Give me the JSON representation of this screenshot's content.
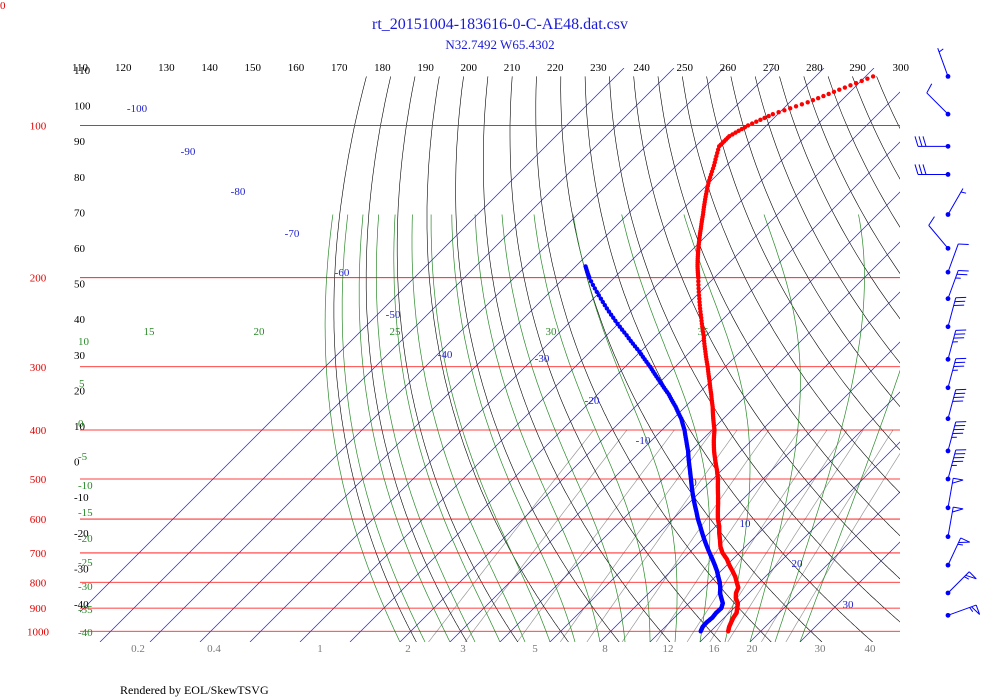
{
  "chart_data": {
    "type": "skew-t",
    "title": "rt_20151004-183616-0-C-AE48.dat.csv",
    "subtitle": "N32.7492 W65.4302",
    "footer": "Rendered by EOL/SkewTSVG",
    "corner_label": "0",
    "theta_ticks": [
      "110",
      "120",
      "130",
      "140",
      "150",
      "160",
      "170",
      "180",
      "190",
      "200",
      "210",
      "220",
      "230",
      "240",
      "250",
      "260",
      "270",
      "280",
      "290",
      "300"
    ],
    "pressure_ticks": [
      "100",
      "200",
      "300",
      "400",
      "500",
      "600",
      "700",
      "800",
      "900",
      "1000"
    ],
    "pressure_values": [
      100,
      200,
      300,
      400,
      500,
      600,
      700,
      800,
      900,
      1000
    ],
    "isotherm_labels": [
      "-100",
      "-90",
      "-80",
      "-70",
      "-60",
      "-50",
      "-40",
      "-30",
      "-20",
      "-10",
      "0",
      "10",
      "20",
      "30"
    ],
    "isotherm_values": [
      -110,
      -100,
      -90,
      -80,
      -70,
      -60,
      -50,
      -40,
      -30,
      -20,
      -10,
      0,
      10,
      20,
      30,
      40
    ],
    "dry_adiabat_labels": [
      "110",
      "100",
      "90",
      "80",
      "70",
      "60",
      "50",
      "40",
      "30",
      "20",
      "10",
      "0",
      "-10",
      "-20",
      "-30",
      "-40"
    ],
    "moist_adiabat_labels": [
      "15",
      "20",
      "25",
      "30",
      "35",
      "10",
      "5",
      "0",
      "-5",
      "-10",
      "-15",
      "-20",
      "-25",
      "-30",
      "-35",
      "-40"
    ],
    "mixing_ratio_labels": [
      "0.2",
      "0.4",
      "1",
      "2",
      "3",
      "5",
      "8",
      "12",
      "16",
      "20",
      "30",
      "40"
    ],
    "mixing_ratio_values": [
      0.2,
      0.4,
      1,
      2,
      3,
      5,
      8,
      12,
      16,
      20,
      30,
      40
    ],
    "temperature": {
      "color": "#ff0000",
      "points": [
        [
          1000,
          23.5
        ],
        [
          980,
          22.8
        ],
        [
          960,
          22.3
        ],
        [
          940,
          21.8
        ],
        [
          920,
          21.5
        ],
        [
          900,
          20.7
        ],
        [
          880,
          19.8
        ],
        [
          860,
          18.4
        ],
        [
          840,
          17.4
        ],
        [
          820,
          16.8
        ],
        [
          800,
          15.4
        ],
        [
          780,
          14.0
        ],
        [
          760,
          12.3
        ],
        [
          740,
          10.5
        ],
        [
          720,
          8.8
        ],
        [
          700,
          6.7
        ],
        [
          680,
          5.0
        ],
        [
          660,
          3.6
        ],
        [
          640,
          2.1
        ],
        [
          620,
          0.7
        ],
        [
          600,
          -1.0
        ],
        [
          580,
          -2.5
        ],
        [
          560,
          -4.0
        ],
        [
          540,
          -5.6
        ],
        [
          520,
          -7.3
        ],
        [
          500,
          -9.0
        ],
        [
          480,
          -11.0
        ],
        [
          460,
          -13.2
        ],
        [
          440,
          -15.4
        ],
        [
          420,
          -17.5
        ],
        [
          400,
          -19.5
        ],
        [
          380,
          -22.0
        ],
        [
          360,
          -24.5
        ],
        [
          340,
          -27.3
        ],
        [
          320,
          -30.3
        ],
        [
          300,
          -33.5
        ],
        [
          280,
          -37.0
        ],
        [
          260,
          -40.6
        ],
        [
          240,
          -44.6
        ],
        [
          220,
          -48.8
        ],
        [
          200,
          -53.2
        ],
        [
          190,
          -55.6
        ],
        [
          180,
          -57.9
        ],
        [
          170,
          -60.2
        ],
        [
          160,
          -62.5
        ],
        [
          150,
          -64.9
        ],
        [
          140,
          -67.5
        ],
        [
          130,
          -70.1
        ],
        [
          120,
          -72.5
        ],
        [
          110,
          -75.3
        ],
        [
          105,
          -75.3
        ],
        [
          100,
          -73.7
        ],
        [
          95,
          -71.0
        ],
        [
          90,
          -66.4
        ],
        [
          85,
          -62.6
        ],
        [
          80,
          -58.5
        ]
      ]
    },
    "dewpoint": {
      "color": "#0000ff",
      "points": [
        [
          1000,
          18.0
        ],
        [
          980,
          17.5
        ],
        [
          960,
          17.4
        ],
        [
          940,
          17.6
        ],
        [
          920,
          17.4
        ],
        [
          900,
          17.5
        ],
        [
          880,
          16.8
        ],
        [
          860,
          15.5
        ],
        [
          840,
          14.2
        ],
        [
          820,
          13.2
        ],
        [
          800,
          12.0
        ],
        [
          780,
          10.6
        ],
        [
          760,
          9.2
        ],
        [
          740,
          7.6
        ],
        [
          720,
          5.9
        ],
        [
          700,
          4.1
        ],
        [
          680,
          2.3
        ],
        [
          660,
          0.5
        ],
        [
          640,
          -1.3
        ],
        [
          620,
          -3.1
        ],
        [
          600,
          -5.0
        ],
        [
          580,
          -6.8
        ],
        [
          560,
          -8.7
        ],
        [
          540,
          -10.6
        ],
        [
          520,
          -12.5
        ],
        [
          500,
          -14.4
        ],
        [
          480,
          -16.4
        ],
        [
          460,
          -18.5
        ],
        [
          440,
          -20.6
        ],
        [
          420,
          -23.0
        ],
        [
          400,
          -25.5
        ],
        [
          380,
          -28.4
        ],
        [
          360,
          -31.9
        ],
        [
          340,
          -35.8
        ],
        [
          320,
          -40.3
        ],
        [
          300,
          -45.0
        ],
        [
          280,
          -50.2
        ],
        [
          260,
          -56.0
        ],
        [
          240,
          -62.2
        ],
        [
          220,
          -68.5
        ],
        [
          200,
          -75.0
        ],
        [
          190,
          -78.0
        ]
      ]
    },
    "wind_barbs": [
      {
        "pressure": 80,
        "direction": 340,
        "speed": 5
      },
      {
        "pressure": 95,
        "direction": 315,
        "speed": 10
      },
      {
        "pressure": 110,
        "direction": 270,
        "speed": 30
      },
      {
        "pressure": 125,
        "direction": 270,
        "speed": 30
      },
      {
        "pressure": 150,
        "direction": 30,
        "speed": 5
      },
      {
        "pressure": 175,
        "direction": 320,
        "speed": 10
      },
      {
        "pressure": 195,
        "direction": 20,
        "speed": 10
      },
      {
        "pressure": 220,
        "direction": 20,
        "speed": 25
      },
      {
        "pressure": 250,
        "direction": 15,
        "speed": 30
      },
      {
        "pressure": 290,
        "direction": 15,
        "speed": 35
      },
      {
        "pressure": 330,
        "direction": 15,
        "speed": 35
      },
      {
        "pressure": 380,
        "direction": 15,
        "speed": 40
      },
      {
        "pressure": 440,
        "direction": 15,
        "speed": 45
      },
      {
        "pressure": 500,
        "direction": 15,
        "speed": 45
      },
      {
        "pressure": 570,
        "direction": 10,
        "speed": 50
      },
      {
        "pressure": 650,
        "direction": 10,
        "speed": 50
      },
      {
        "pressure": 740,
        "direction": 25,
        "speed": 55
      },
      {
        "pressure": 840,
        "direction": 45,
        "speed": 55
      },
      {
        "pressure": 930,
        "direction": 70,
        "speed": 55
      }
    ],
    "colors": {
      "isobar": "#ff0000",
      "isotherm": "#2222dd",
      "dry_adiabat": "#000000",
      "moist_adiabat": "#2a8a2a",
      "mixing_ratio": "#999999",
      "wind": "#0000ff"
    }
  }
}
